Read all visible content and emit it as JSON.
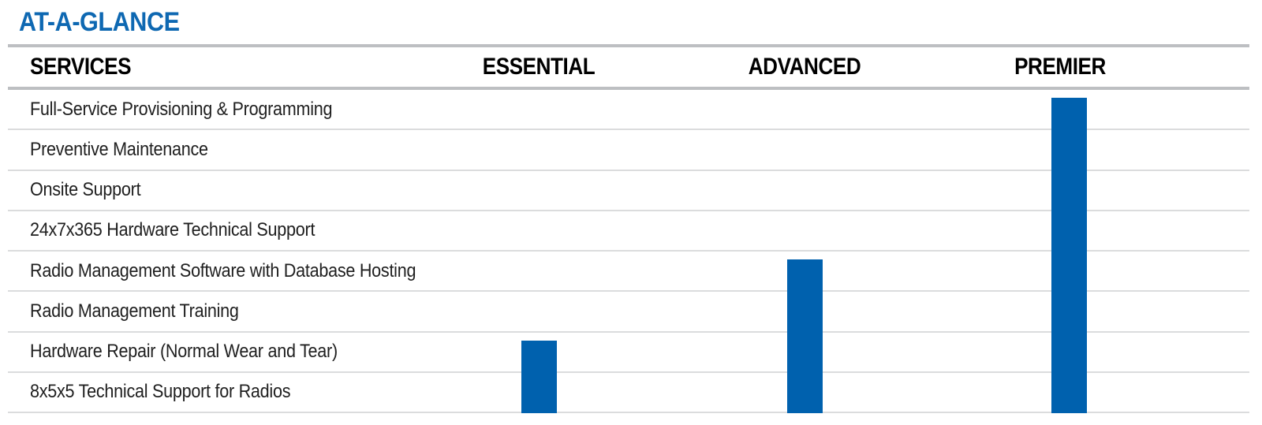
{
  "page": {
    "title": "AT-A-GLANCE"
  },
  "chart_data": {
    "type": "table",
    "title": "AT-A-GLANCE",
    "columns": [
      "SERVICES",
      "ESSENTIAL",
      "ADVANCED",
      "PREMIER"
    ],
    "rows": [
      "Full-Service Provisioning & Programming",
      "Preventive Maintenance",
      "Onsite Support",
      "24x7x365 Hardware Technical Support",
      "Radio Management Software with Database Hosting",
      "Radio Management Training",
      "Hardware Repair (Normal Wear and Tear)",
      "8x5x5 Technical Support for Radios"
    ],
    "tiers": [
      {
        "name": "ESSENTIAL",
        "first_included_row_index": 6,
        "included_services": [
          "Hardware Repair (Normal Wear and Tear)",
          "8x5x5 Technical Support for Radios"
        ],
        "included_flags": [
          false,
          false,
          false,
          false,
          false,
          false,
          true,
          true
        ]
      },
      {
        "name": "ADVANCED",
        "first_included_row_index": 4,
        "included_services": [
          "Radio Management Software with Database Hosting",
          "Radio Management Training",
          "Hardware Repair (Normal Wear and Tear)",
          "8x5x5 Technical Support for Radios"
        ],
        "included_flags": [
          false,
          false,
          false,
          false,
          true,
          true,
          true,
          true
        ]
      },
      {
        "name": "PREMIER",
        "first_included_row_index": 0,
        "included_services": [
          "Full-Service Provisioning & Programming",
          "Preventive Maintenance",
          "Onsite Support",
          "24x7x365 Hardware Technical Support",
          "Radio Management Software with Database Hosting",
          "Radio Management Training",
          "Hardware Repair (Normal Wear and Tear)",
          "8x5x5 Technical Support for Radios"
        ],
        "included_flags": [
          true,
          true,
          true,
          true,
          true,
          true,
          true,
          true
        ]
      }
    ],
    "legend_position": "none",
    "grid": "horizontal-rules"
  },
  "colors": {
    "title_blue": "#0E68B2",
    "bar_blue": "#0061AE",
    "thick_rule_gray": "#BDBFC2",
    "thin_rule_gray": "#DBDCDD",
    "header_text": "#000000",
    "row_text": "#1F1F1F"
  }
}
